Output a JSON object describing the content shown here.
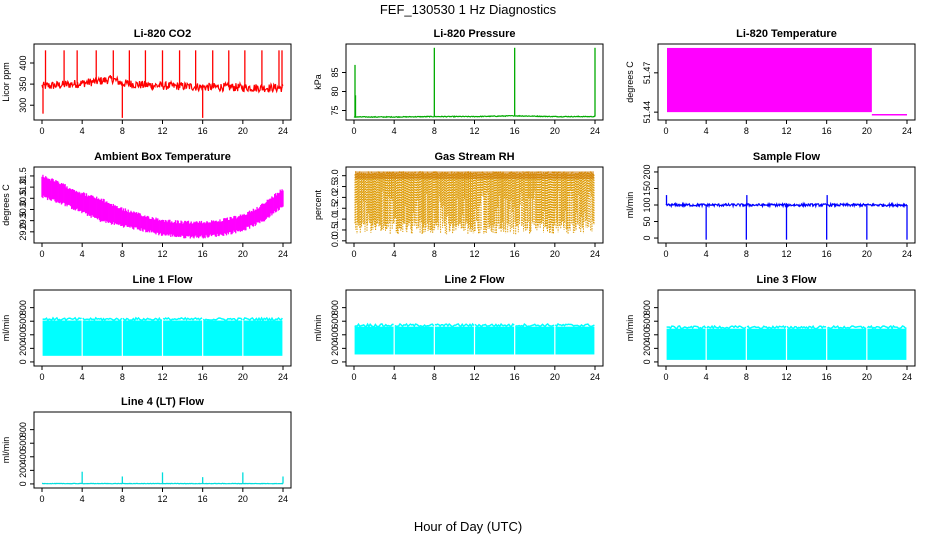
{
  "figure": {
    "title": "FEF_130530  1 Hz Diagnostics",
    "xlabel": "Hour of Day (UTC)"
  },
  "chart_data": [
    {
      "type": "line",
      "title": "Li-820 CO2",
      "ylabel": "Licor ppm",
      "color": "#ff0000",
      "xlim": [
        0,
        24
      ],
      "xticks": [
        0,
        4,
        8,
        12,
        16,
        20,
        24
      ],
      "ylim": [
        265,
        445
      ],
      "yticks": [
        300,
        350,
        400
      ],
      "baseline": [
        [
          0,
          345
        ],
        [
          2,
          348
        ],
        [
          4,
          352
        ],
        [
          6,
          358
        ],
        [
          7,
          362
        ],
        [
          8,
          352
        ],
        [
          10,
          348
        ],
        [
          12,
          346
        ],
        [
          14,
          345
        ],
        [
          16,
          343
        ],
        [
          18,
          343
        ],
        [
          20,
          342
        ],
        [
          22,
          341
        ],
        [
          24,
          341
        ]
      ],
      "noise": 10,
      "spikes": [
        [
          0.1,
          280
        ],
        [
          0.35,
          430
        ],
        [
          2.2,
          430
        ],
        [
          3.5,
          430
        ],
        [
          5.4,
          430
        ],
        [
          7.1,
          430
        ],
        [
          8.0,
          270
        ],
        [
          8.7,
          430
        ],
        [
          10.3,
          430
        ],
        [
          12.0,
          430
        ],
        [
          13.7,
          430
        ],
        [
          15.3,
          430
        ],
        [
          16.0,
          270
        ],
        [
          17.0,
          430
        ],
        [
          18.6,
          430
        ],
        [
          20.2,
          430
        ],
        [
          21.9,
          430
        ],
        [
          23.6,
          430
        ],
        [
          23.9,
          430
        ]
      ]
    },
    {
      "type": "line",
      "title": "Li-820 Pressure",
      "ylabel": "kPa",
      "color": "#00aa00",
      "xlim": [
        0,
        24
      ],
      "xticks": [
        0,
        4,
        8,
        12,
        16,
        20,
        24
      ],
      "ylim": [
        72.5,
        92.5
      ],
      "yticks": [
        75,
        80,
        85
      ],
      "baseline": [
        [
          0,
          73.3
        ],
        [
          4,
          73.3
        ],
        [
          8,
          73.4
        ],
        [
          12,
          73.4
        ],
        [
          16,
          73.6
        ],
        [
          20,
          73.4
        ],
        [
          24,
          73.4
        ]
      ],
      "noise": 0.1,
      "spikes": [
        [
          0.1,
          87.0
        ],
        [
          0.15,
          79.0
        ],
        [
          8.0,
          91.5
        ],
        [
          16.0,
          91.5
        ],
        [
          24.0,
          91.5
        ]
      ]
    },
    {
      "type": "area",
      "title": "Li-820 Temperature",
      "ylabel": "degrees C",
      "color": "#ff00ff",
      "xlim": [
        0,
        24
      ],
      "xticks": [
        0,
        4,
        8,
        12,
        16,
        20,
        24
      ],
      "ylim": [
        51.434,
        51.492
      ],
      "yticks": [
        51.44,
        51.47
      ],
      "low": 51.44,
      "high": 51.489,
      "x_start": 0.1,
      "x_end": 20.5,
      "after_value": 51.438
    },
    {
      "type": "line",
      "title": "Ambient Box Temperature",
      "ylabel": "degrees C",
      "color": "#ff00ff",
      "xlim": [
        0,
        24
      ],
      "xticks": [
        0,
        4,
        8,
        12,
        16,
        20,
        24
      ],
      "ylim": [
        28.5,
        31.9
      ],
      "yticks": [
        29.0,
        29.5,
        30.0,
        30.5,
        31.0,
        31.5
      ],
      "upper": [
        [
          0,
          31.6
        ],
        [
          2,
          31.2
        ],
        [
          4,
          30.8
        ],
        [
          6,
          30.5
        ],
        [
          8,
          30.1
        ],
        [
          10,
          29.8
        ],
        [
          12,
          29.6
        ],
        [
          14,
          29.5
        ],
        [
          16,
          29.5
        ],
        [
          18,
          29.6
        ],
        [
          20,
          29.8
        ],
        [
          22,
          30.3
        ],
        [
          24,
          31.0
        ]
      ],
      "lower": [
        [
          0,
          30.5
        ],
        [
          2,
          30.2
        ],
        [
          4,
          29.8
        ],
        [
          6,
          29.4
        ],
        [
          8,
          29.2
        ],
        [
          10,
          29.0
        ],
        [
          12,
          28.8
        ],
        [
          14,
          28.7
        ],
        [
          16,
          28.7
        ],
        [
          18,
          28.8
        ],
        [
          20,
          29.0
        ],
        [
          22,
          29.4
        ],
        [
          24,
          30.1
        ]
      ]
    },
    {
      "type": "scatter",
      "title": "Gas Stream RH",
      "ylabel": "percent",
      "color": "#dd9900",
      "xlim": [
        0,
        24
      ],
      "xticks": [
        0,
        4,
        8,
        12,
        16,
        20,
        24
      ],
      "ylim": [
        -0.1,
        3.4
      ],
      "yticks": [
        0.0,
        0.5,
        1.0,
        1.5,
        2.0,
        2.5,
        3.0
      ],
      "top": 3.2,
      "bottom": 0.3
    },
    {
      "type": "line",
      "title": "Sample Flow",
      "ylabel": "ml/min",
      "color": "#0000ff",
      "xlim": [
        0,
        24
      ],
      "xticks": [
        0,
        4,
        8,
        12,
        16,
        20,
        24
      ],
      "ylim": [
        -15,
        215
      ],
      "yticks": [
        0,
        50,
        100,
        150,
        200
      ],
      "baseline": [
        [
          0,
          100
        ],
        [
          24,
          100
        ]
      ],
      "noise": 4,
      "spikes": [
        [
          0.05,
          130
        ],
        [
          4.0,
          -5
        ],
        [
          8.0,
          -5
        ],
        [
          8.05,
          130
        ],
        [
          12.0,
          -5
        ],
        [
          16.0,
          -5
        ],
        [
          16.05,
          130
        ],
        [
          20.0,
          -5
        ],
        [
          24.0,
          -5
        ]
      ]
    },
    {
      "type": "area",
      "title": "Line 1 Flow",
      "ylabel": "ml/min",
      "color": "#00ffff",
      "xlim": [
        0,
        24
      ],
      "xticks": [
        0,
        4,
        8,
        12,
        16,
        20,
        24
      ],
      "ylim": [
        -60,
        1060
      ],
      "yticks": [
        0,
        200,
        400,
        600,
        800
      ],
      "low": 90,
      "high": 610,
      "gaps": [
        4,
        8,
        12,
        16,
        20
      ]
    },
    {
      "type": "area",
      "title": "Line 2 Flow",
      "ylabel": "ml/min",
      "color": "#00ffff",
      "xlim": [
        0,
        24
      ],
      "xticks": [
        0,
        4,
        8,
        12,
        16,
        20,
        24
      ],
      "ylim": [
        -60,
        1060
      ],
      "yticks": [
        0,
        200,
        400,
        600,
        800
      ],
      "low": 110,
      "high": 520,
      "gaps": [
        4,
        8,
        12,
        16,
        20
      ]
    },
    {
      "type": "area",
      "title": "Line 3 Flow",
      "ylabel": "ml/min",
      "color": "#00ffff",
      "xlim": [
        0,
        24
      ],
      "xticks": [
        0,
        4,
        8,
        12,
        16,
        20,
        24
      ],
      "ylim": [
        -60,
        1060
      ],
      "yticks": [
        0,
        200,
        400,
        600,
        800
      ],
      "low": 30,
      "high": 490,
      "gaps": [
        4,
        8,
        12,
        16,
        20
      ]
    },
    {
      "type": "line",
      "title": "Line 4 (LT) Flow",
      "ylabel": "ml/min",
      "color": "#00dddd",
      "xlim": [
        0,
        24
      ],
      "xticks": [
        0,
        4,
        8,
        12,
        16,
        20,
        24
      ],
      "ylim": [
        -60,
        1060
      ],
      "yticks": [
        0,
        200,
        400,
        600,
        800
      ],
      "baseline": [
        [
          0,
          5
        ],
        [
          24,
          5
        ]
      ],
      "noise": 3,
      "spikes": [
        [
          4.0,
          180
        ],
        [
          8.0,
          110
        ],
        [
          12.0,
          170
        ],
        [
          16.0,
          100
        ],
        [
          20.0,
          170
        ],
        [
          24.0,
          110
        ]
      ]
    }
  ]
}
